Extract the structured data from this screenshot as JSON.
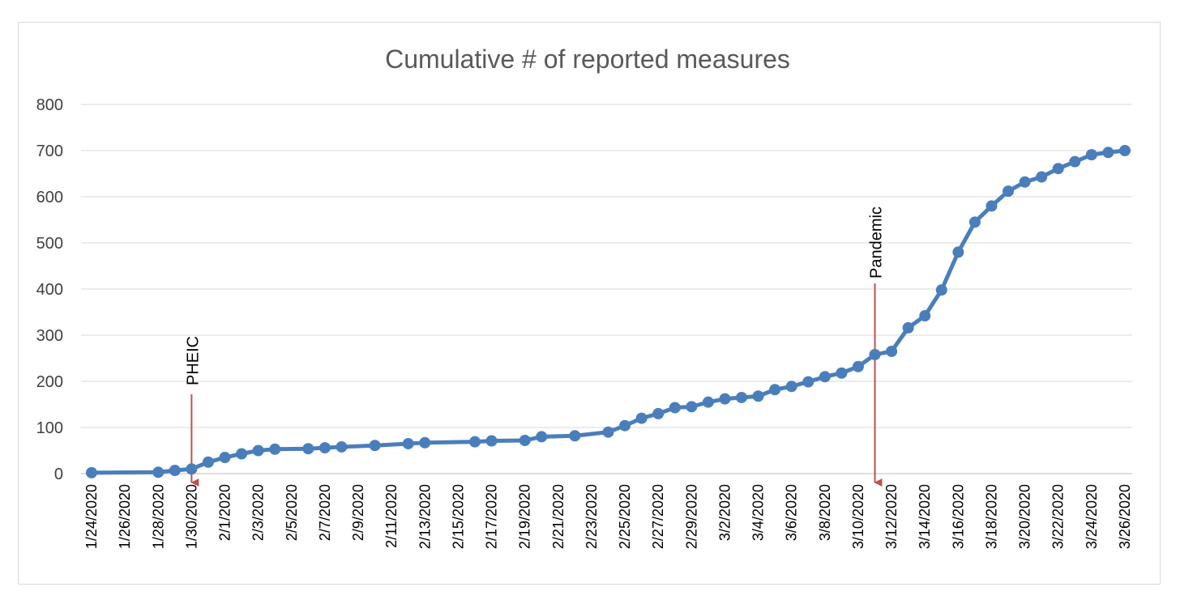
{
  "chart_data": {
    "type": "line",
    "title": "Cumulative # of reported measures",
    "xlabel": "",
    "ylabel": "",
    "ylim": [
      0,
      800
    ],
    "yticks": [
      0,
      100,
      200,
      300,
      400,
      500,
      600,
      700,
      800
    ],
    "xlim": [
      "1/24/2020",
      "3/26/2020"
    ],
    "x_tick_labels": [
      "1/24/2020",
      "1/26/2020",
      "1/28/2020",
      "1/30/2020",
      "2/1/2020",
      "2/3/2020",
      "2/5/2020",
      "2/7/2020",
      "2/9/2020",
      "2/11/2020",
      "2/13/2020",
      "2/15/2020",
      "2/17/2020",
      "2/19/2020",
      "2/21/2020",
      "2/23/2020",
      "2/25/2020",
      "2/27/2020",
      "2/29/2020",
      "3/2/2020",
      "3/4/2020",
      "3/6/2020",
      "3/8/2020",
      "3/10/2020",
      "3/12/2020",
      "3/14/2020",
      "3/16/2020",
      "3/18/2020",
      "3/20/2020",
      "3/22/2020",
      "3/24/2020",
      "3/26/2020"
    ],
    "grid": true,
    "legend": "none",
    "series": [
      {
        "color": "#4a7ebb",
        "points": [
          {
            "x": "1/24/2020",
            "y": 2
          },
          {
            "x": "1/28/2020",
            "y": 3
          },
          {
            "x": "1/29/2020",
            "y": 7
          },
          {
            "x": "1/30/2020",
            "y": 10
          },
          {
            "x": "1/31/2020",
            "y": 25
          },
          {
            "x": "2/1/2020",
            "y": 35
          },
          {
            "x": "2/2/2020",
            "y": 43
          },
          {
            "x": "2/3/2020",
            "y": 50
          },
          {
            "x": "2/4/2020",
            "y": 53
          },
          {
            "x": "2/6/2020",
            "y": 54
          },
          {
            "x": "2/7/2020",
            "y": 56
          },
          {
            "x": "2/8/2020",
            "y": 58
          },
          {
            "x": "2/10/2020",
            "y": 61
          },
          {
            "x": "2/12/2020",
            "y": 65
          },
          {
            "x": "2/13/2020",
            "y": 67
          },
          {
            "x": "2/16/2020",
            "y": 69
          },
          {
            "x": "2/17/2020",
            "y": 71
          },
          {
            "x": "2/19/2020",
            "y": 72
          },
          {
            "x": "2/20/2020",
            "y": 80
          },
          {
            "x": "2/22/2020",
            "y": 82
          },
          {
            "x": "2/24/2020",
            "y": 90
          },
          {
            "x": "2/25/2020",
            "y": 104
          },
          {
            "x": "2/26/2020",
            "y": 120
          },
          {
            "x": "2/27/2020",
            "y": 130
          },
          {
            "x": "2/28/2020",
            "y": 143
          },
          {
            "x": "2/29/2020",
            "y": 145
          },
          {
            "x": "3/1/2020",
            "y": 155
          },
          {
            "x": "3/2/2020",
            "y": 162
          },
          {
            "x": "3/3/2020",
            "y": 165
          },
          {
            "x": "3/4/2020",
            "y": 168
          },
          {
            "x": "3/5/2020",
            "y": 182
          },
          {
            "x": "3/6/2020",
            "y": 189
          },
          {
            "x": "3/7/2020",
            "y": 199
          },
          {
            "x": "3/8/2020",
            "y": 210
          },
          {
            "x": "3/9/2020",
            "y": 218
          },
          {
            "x": "3/10/2020",
            "y": 232
          },
          {
            "x": "3/11/2020",
            "y": 258
          },
          {
            "x": "3/12/2020",
            "y": 265
          },
          {
            "x": "3/13/2020",
            "y": 316
          },
          {
            "x": "3/14/2020",
            "y": 342
          },
          {
            "x": "3/15/2020",
            "y": 398
          },
          {
            "x": "3/16/2020",
            "y": 480
          },
          {
            "x": "3/17/2020",
            "y": 545
          },
          {
            "x": "3/18/2020",
            "y": 580
          },
          {
            "x": "3/19/2020",
            "y": 612
          },
          {
            "x": "3/20/2020",
            "y": 632
          },
          {
            "x": "3/21/2020",
            "y": 643
          },
          {
            "x": "3/22/2020",
            "y": 661
          },
          {
            "x": "3/23/2020",
            "y": 676
          },
          {
            "x": "3/24/2020",
            "y": 691
          },
          {
            "x": "3/25/2020",
            "y": 696
          },
          {
            "x": "3/26/2020",
            "y": 700
          }
        ]
      }
    ],
    "annotations": [
      {
        "text": "PHEIC",
        "x": "1/30/2020",
        "arrow_color": "#c0504d"
      },
      {
        "text": "Pandemic",
        "x": "3/11/2020",
        "arrow_color": "#c0504d"
      }
    ]
  }
}
